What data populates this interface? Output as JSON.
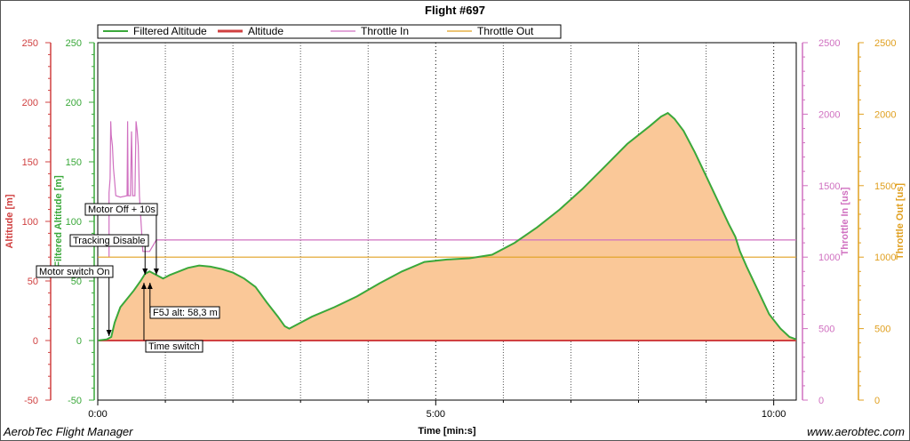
{
  "window": {
    "title": "Flight #697",
    "app_name": "AerobTec Flight Manager",
    "website": "www.aerobtec.com"
  },
  "colors": {
    "altitude": "#d04040",
    "filtered_altitude": "#3aa83a",
    "throttle_in": "#d070c0",
    "throttle_out": "#e0a020",
    "area_fill": "#fac898",
    "time_axis": "#000000"
  },
  "chart_data": {
    "type": "area",
    "title": "Flight #697",
    "xlabel": "Time [min:s]",
    "x_ticks": [
      "0:00",
      "5:00",
      "10:00"
    ],
    "xlim": [
      0,
      620
    ],
    "grid": "dotted vertical",
    "legend_position": "top",
    "axes": [
      {
        "name": "Altitude [m]",
        "side": "left",
        "range": [
          -50,
          250
        ],
        "ticks": [
          "-50",
          "0",
          "50",
          "100",
          "150",
          "200",
          "250"
        ]
      },
      {
        "name": "Filtered Altitude [m]",
        "side": "left",
        "range": [
          -50,
          250
        ],
        "ticks": [
          "-50",
          "0",
          "50",
          "100",
          "150",
          "200",
          "250"
        ]
      },
      {
        "name": "Throttle In [us]",
        "side": "right",
        "range": [
          0,
          2500
        ],
        "ticks": [
          "0",
          "500",
          "1000",
          "1500",
          "2000",
          "2500"
        ]
      },
      {
        "name": "Throttle Out [us]",
        "side": "right",
        "range": [
          0,
          2500
        ],
        "ticks": [
          "0",
          "500",
          "1000",
          "1500",
          "2000",
          "2500"
        ]
      }
    ],
    "series": [
      {
        "name": "Filtered Altitude",
        "axis": "Filtered Altitude [m]",
        "points": [
          [
            0,
            0
          ],
          [
            8,
            1
          ],
          [
            12,
            3
          ],
          [
            15,
            15
          ],
          [
            20,
            28
          ],
          [
            26,
            35
          ],
          [
            32,
            42
          ],
          [
            38,
            50
          ],
          [
            42,
            56
          ],
          [
            46,
            58
          ],
          [
            52,
            55
          ],
          [
            58,
            52
          ],
          [
            64,
            55
          ],
          [
            72,
            58
          ],
          [
            80,
            61
          ],
          [
            90,
            63
          ],
          [
            100,
            62
          ],
          [
            110,
            60
          ],
          [
            120,
            57
          ],
          [
            130,
            52
          ],
          [
            140,
            45
          ],
          [
            150,
            32
          ],
          [
            160,
            20
          ],
          [
            166,
            12
          ],
          [
            170,
            10
          ],
          [
            178,
            14
          ],
          [
            190,
            20
          ],
          [
            210,
            28
          ],
          [
            230,
            37
          ],
          [
            250,
            48
          ],
          [
            270,
            58
          ],
          [
            290,
            66
          ],
          [
            310,
            68
          ],
          [
            330,
            69
          ],
          [
            350,
            72
          ],
          [
            370,
            82
          ],
          [
            390,
            95
          ],
          [
            410,
            110
          ],
          [
            430,
            127
          ],
          [
            450,
            146
          ],
          [
            470,
            165
          ],
          [
            490,
            180
          ],
          [
            500,
            188
          ],
          [
            506,
            191
          ],
          [
            512,
            186
          ],
          [
            520,
            176
          ],
          [
            530,
            158
          ],
          [
            540,
            138
          ],
          [
            550,
            118
          ],
          [
            560,
            98
          ],
          [
            566,
            87
          ],
          [
            570,
            75
          ],
          [
            576,
            62
          ],
          [
            586,
            42
          ],
          [
            596,
            22
          ],
          [
            606,
            10
          ],
          [
            614,
            3
          ],
          [
            620,
            1
          ]
        ]
      },
      {
        "name": "Altitude",
        "axis": "Altitude [m]",
        "points": [
          [
            0,
            0
          ],
          [
            620,
            0
          ]
        ]
      },
      {
        "name": "Throttle In",
        "axis": "Throttle In [us]",
        "points": [
          [
            10,
            1000
          ],
          [
            10,
            1450
          ],
          [
            11,
            1550
          ],
          [
            11.5,
            1950
          ],
          [
            12,
            1850
          ],
          [
            13,
            1780
          ],
          [
            14,
            1620
          ],
          [
            15,
            1530
          ],
          [
            16,
            1430
          ],
          [
            20,
            1420
          ],
          [
            26,
            1430
          ],
          [
            26.5,
            1950
          ],
          [
            27,
            1430
          ],
          [
            29,
            1430
          ],
          [
            30,
            1880
          ],
          [
            31,
            1430
          ],
          [
            33,
            1430
          ],
          [
            34,
            1950
          ],
          [
            35,
            1880
          ],
          [
            36,
            1780
          ],
          [
            37,
            1430
          ],
          [
            40,
            1040
          ],
          [
            46,
            1040
          ],
          [
            52,
            1120
          ],
          [
            620,
            1120
          ]
        ]
      },
      {
        "name": "Throttle Out",
        "axis": "Throttle Out [us]",
        "points": [
          [
            0,
            1000
          ],
          [
            620,
            1000
          ]
        ]
      }
    ],
    "annotations": [
      {
        "label": "Motor switch On",
        "time": 10
      },
      {
        "label": "Tracking Disable",
        "time": 42
      },
      {
        "label": "Motor Off + 10s",
        "time": 52
      },
      {
        "label": "F5J alt: 58,3 m",
        "time": 44
      },
      {
        "label": "Time switch",
        "time": 41
      }
    ]
  }
}
